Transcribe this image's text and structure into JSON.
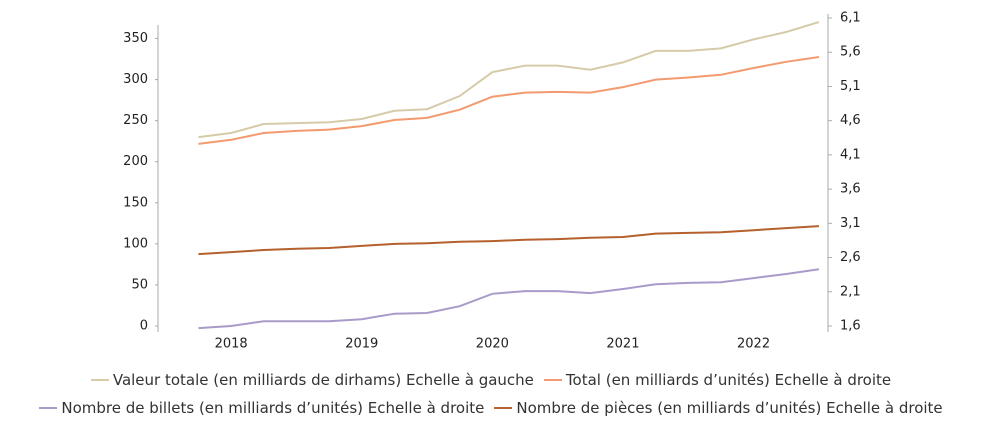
{
  "chart_data": {
    "type": "line",
    "x": [
      2017.75,
      2018.0,
      2018.25,
      2018.5,
      2018.75,
      2019.0,
      2019.25,
      2019.5,
      2019.75,
      2020.0,
      2020.25,
      2020.5,
      2020.75,
      2021.0,
      2021.25,
      2021.5,
      2021.75,
      2022.0,
      2022.25,
      2022.5
    ],
    "xlim": [
      2017.44,
      2022.57
    ],
    "xticks": [
      2018,
      2019,
      2020,
      2021,
      2022
    ],
    "ylim": [
      0,
      375
    ],
    "yticks": [
      0,
      50,
      100,
      150,
      200,
      250,
      300,
      350
    ],
    "y2lim": [
      1.6,
      6.1
    ],
    "y2ticks": [
      {
        "value": 1.6,
        "label": "1,6"
      },
      {
        "value": 2.1,
        "label": "2,1"
      },
      {
        "value": 2.6,
        "label": "2,6"
      },
      {
        "value": 3.1,
        "label": "3,1"
      },
      {
        "value": 3.6,
        "label": "3,6"
      },
      {
        "value": 4.1,
        "label": "4,1"
      },
      {
        "value": 4.6,
        "label": "4,6"
      },
      {
        "value": 5.1,
        "label": "5,1"
      },
      {
        "value": 5.6,
        "label": "5,6"
      },
      {
        "value": 6.1,
        "label": "6,1"
      }
    ],
    "series": [
      {
        "name": "Valeur totale (en milliards de dirhams) Echelle à gauche",
        "color": "#d6cba8",
        "values": [
          230,
          235,
          246,
          247,
          248,
          252,
          262,
          264,
          280,
          309,
          317,
          317,
          312,
          321,
          335,
          335,
          338,
          349,
          358,
          370
        ]
      },
      {
        "name": "Total (en milliards d’unités) Echelle à droite",
        "color": "#f39a6e",
        "axis": "y2",
        "values": [
          4.26,
          4.32,
          4.42,
          4.45,
          4.47,
          4.52,
          4.61,
          4.64,
          4.76,
          4.95,
          5.01,
          5.02,
          5.01,
          5.09,
          5.2,
          5.23,
          5.27,
          5.37,
          5.46,
          5.53
        ]
      },
      {
        "name": "Nombre de billets (en milliards d’unités) Echelle à droite",
        "color": "#a99bc9",
        "axis": "y2",
        "values": [
          1.57,
          1.6,
          1.67,
          1.67,
          1.67,
          1.7,
          1.78,
          1.79,
          1.89,
          2.07,
          2.11,
          2.11,
          2.08,
          2.14,
          2.21,
          2.23,
          2.24,
          2.3,
          2.36,
          2.43
        ]
      },
      {
        "name": "Nombre de pièces (en milliards d’unités) Echelle à droite",
        "color": "#b5602d",
        "axis": "y2",
        "values": [
          2.65,
          2.68,
          2.71,
          2.73,
          2.74,
          2.77,
          2.8,
          2.81,
          2.83,
          2.84,
          2.86,
          2.87,
          2.89,
          2.9,
          2.95,
          2.96,
          2.97,
          3.0,
          3.03,
          3.06
        ]
      }
    ]
  }
}
